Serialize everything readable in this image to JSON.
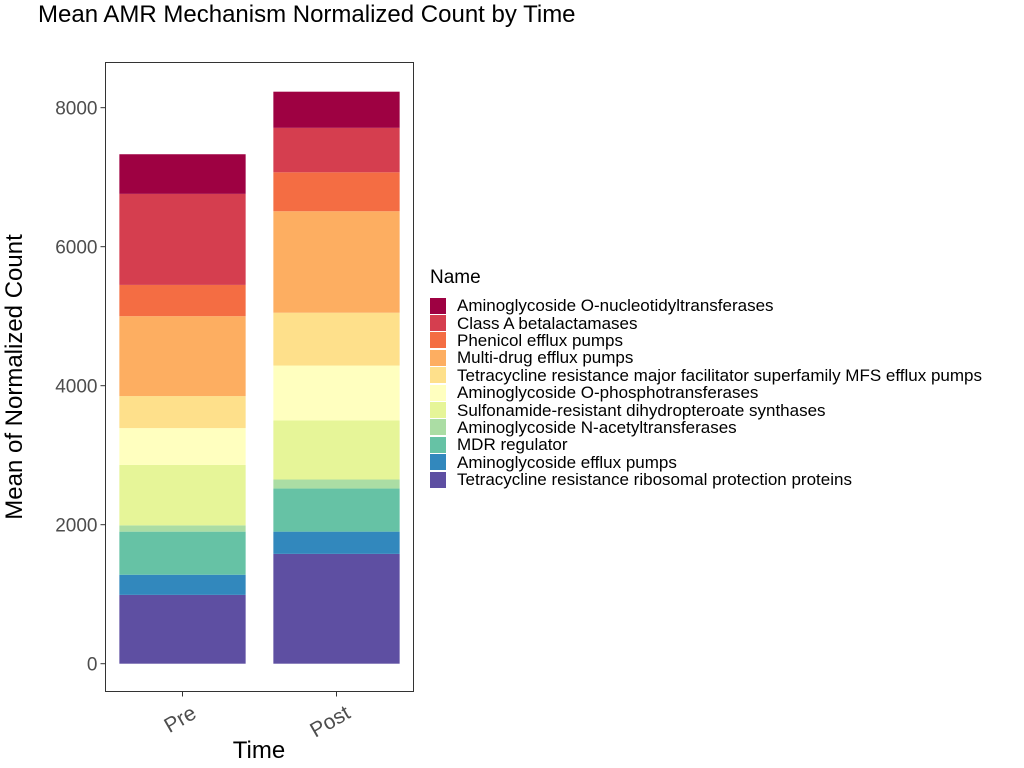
{
  "chart_data": {
    "type": "bar",
    "stacked": true,
    "title": "Mean AMR Mechanism Normalized Count by Time",
    "xlabel": "Time",
    "ylabel": "Mean of Normalized Count",
    "categories": [
      "Pre",
      "Post"
    ],
    "yticks": [
      0,
      2000,
      4000,
      6000,
      8000
    ],
    "ylim": [
      -400,
      8650
    ],
    "legend_title": "Name",
    "legend_position": "right",
    "grid": false,
    "series": [
      {
        "name": "Tetracycline resistance ribosomal protection proteins",
        "color": "#5e4fa2",
        "values": [
          990,
          1580
        ]
      },
      {
        "name": "Aminoglycoside efflux pumps",
        "color": "#3288bd",
        "values": [
          290,
          320
        ]
      },
      {
        "name": "MDR regulator",
        "color": "#66c2a5",
        "values": [
          620,
          620
        ]
      },
      {
        "name": "Aminoglycoside N-acetyltransferases",
        "color": "#abdda4",
        "values": [
          90,
          130
        ]
      },
      {
        "name": "Sulfonamide-resistant dihydropteroate synthases",
        "color": "#e6f598",
        "values": [
          870,
          850
        ]
      },
      {
        "name": "Aminoglycoside O-phosphotransferases",
        "color": "#ffffbf",
        "values": [
          530,
          790
        ]
      },
      {
        "name": "Tetracycline resistance major facilitator superfamily MFS efflux pumps",
        "color": "#fee08b",
        "values": [
          460,
          760
        ]
      },
      {
        "name": "Multi-drug efflux pumps",
        "color": "#fdae61",
        "values": [
          1150,
          1460
        ]
      },
      {
        "name": "Phenicol efflux pumps",
        "color": "#f46d43",
        "values": [
          450,
          560
        ]
      },
      {
        "name": "Class A betalactamases",
        "color": "#d53e4f",
        "values": [
          1310,
          640
        ]
      },
      {
        "name": "Aminoglycoside O-nucleotidyltransferases",
        "color": "#9e0142",
        "values": [
          570,
          520
        ]
      }
    ]
  }
}
